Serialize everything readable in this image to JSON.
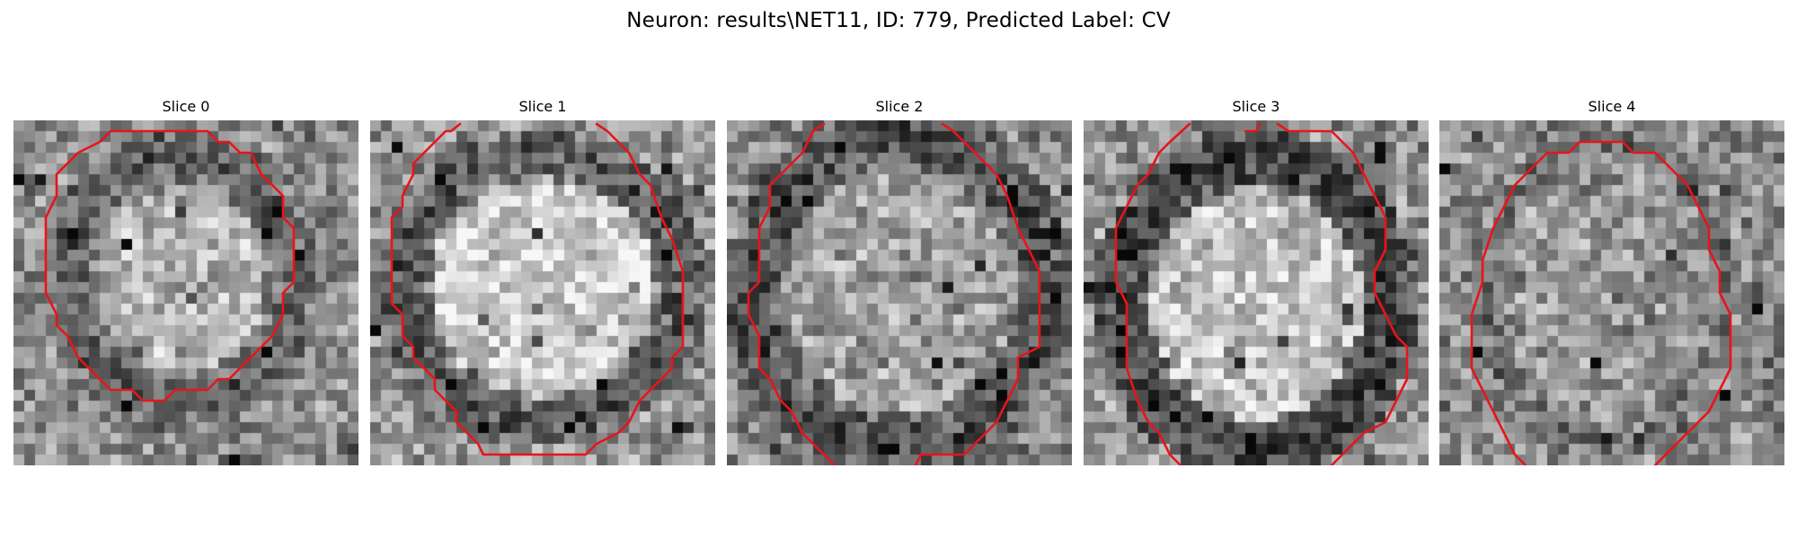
{
  "figure": {
    "title": "Neuron: results\\NET11, ID: 779, Predicted Label: CV"
  },
  "panels": [
    {
      "title": "Slice 0"
    },
    {
      "title": "Slice 1"
    },
    {
      "title": "Slice 2"
    },
    {
      "title": "Slice 3"
    },
    {
      "title": "Slice 4"
    }
  ],
  "colors": {
    "contour": "#e8141a",
    "background": "#ffffff"
  }
}
